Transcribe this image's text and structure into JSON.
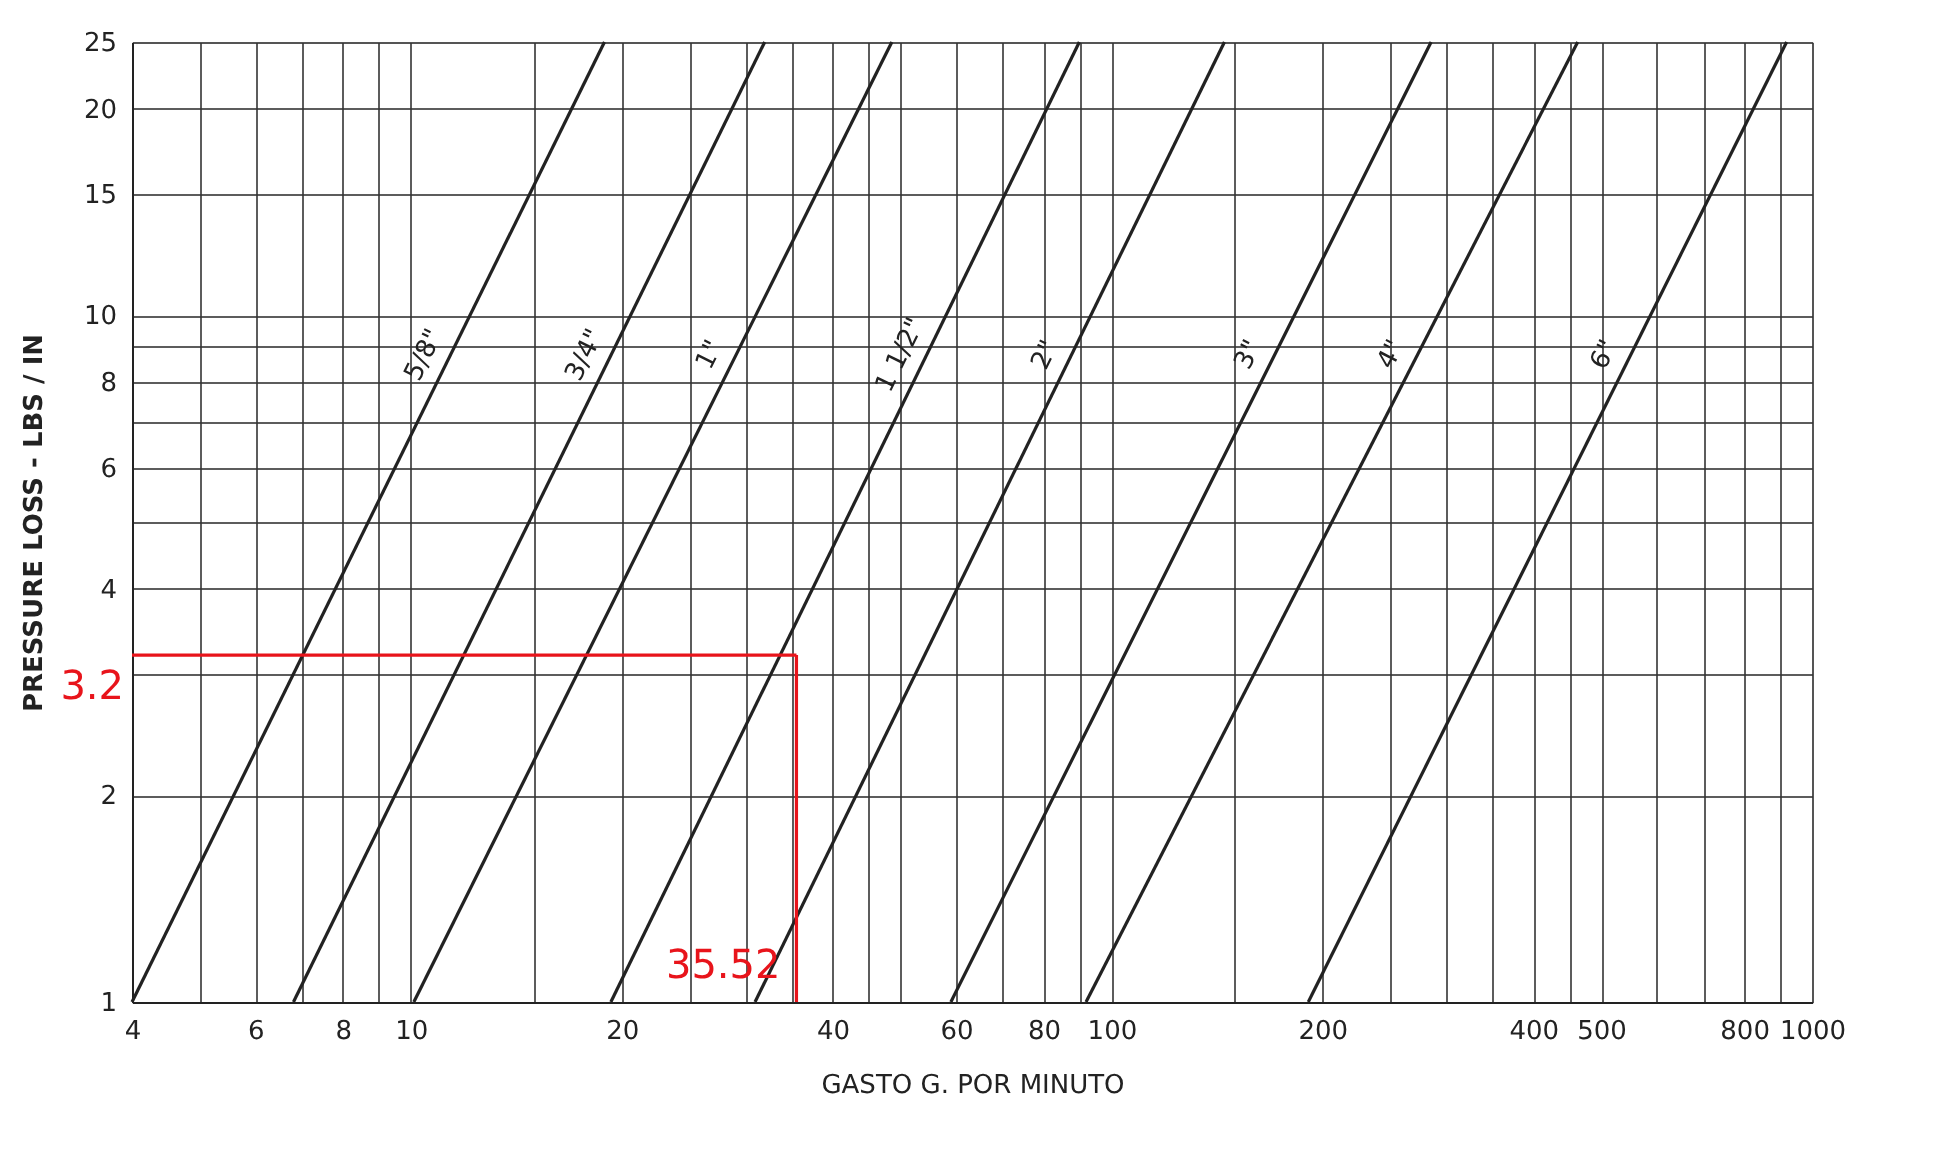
{
  "chart_data": {
    "type": "line",
    "xlabel": "GASTO  G. POR MINUTO",
    "ylabel": "PRESSURE   LOSS - LBS / IN",
    "log": "xy",
    "grid": true,
    "marker": "none",
    "line_style": "solid",
    "xlim": [
      4,
      1000
    ],
    "ylim": [
      1,
      25
    ],
    "xticks": [
      4,
      {
        "value": 5,
        "label": null
      },
      6,
      {
        "value": 7,
        "label": null
      },
      8,
      {
        "value": 9,
        "label": null
      },
      10,
      {
        "value": 15,
        "label": null
      },
      20,
      {
        "value": 25,
        "label": null
      },
      {
        "value": 30,
        "label": null
      },
      {
        "value": 35,
        "label": null
      },
      40,
      {
        "value": 45,
        "label": null
      },
      {
        "value": 50,
        "label": null
      },
      60,
      {
        "value": 70,
        "label": null
      },
      80,
      {
        "value": 90,
        "label": null
      },
      100,
      {
        "value": 150,
        "label": null
      },
      200,
      {
        "value": 250,
        "label": null
      },
      {
        "value": 300,
        "label": null
      },
      {
        "value": 350,
        "label": null
      },
      400,
      {
        "value": 450,
        "label": null
      },
      500,
      {
        "value": 600,
        "label": null
      },
      {
        "value": 700,
        "label": null
      },
      800,
      {
        "value": 900,
        "label": null
      },
      1000
    ],
    "yticks": [
      1,
      2,
      {
        "value": 3,
        "label": null
      },
      4,
      {
        "value": 5,
        "label": null
      },
      6,
      {
        "value": 7,
        "label": null
      },
      8,
      {
        "value": 9,
        "label": null
      },
      10,
      15,
      20,
      25
    ],
    "series": [
      {
        "name": "5/8\"",
        "color": "#222222",
        "x": [
          4,
          18.9
        ],
        "values": [
          1,
          25
        ]
      },
      {
        "name": "3/4\"",
        "color": "#222222",
        "x": [
          6.8,
          32
        ],
        "values": [
          1,
          25
        ]
      },
      {
        "name": "1\"",
        "color": "#222222",
        "x": [
          10.1,
          48.6
        ],
        "values": [
          1,
          25
        ]
      },
      {
        "name": "1 1/2\"",
        "color": "#222222",
        "x": [
          19.3,
          90
        ],
        "values": [
          1,
          25
        ]
      },
      {
        "name": "2\"",
        "color": "#222222",
        "x": [
          31,
          145
        ],
        "values": [
          1,
          25
        ]
      },
      {
        "name": "3\"",
        "color": "#222222",
        "x": [
          59,
          286
        ],
        "values": [
          1,
          25
        ]
      },
      {
        "name": "4\"",
        "color": "#222222",
        "x": [
          92,
          463
        ],
        "values": [
          1,
          25
        ]
      },
      {
        "name": "6\"",
        "color": "#222222",
        "x": [
          191,
          920
        ],
        "values": [
          1,
          25
        ]
      },
      {
        "color": "#e8141b",
        "x": [
          4,
          35.52
        ],
        "values": [
          3.2,
          3.2
        ]
      },
      {
        "color": "#e8141b",
        "x": [
          35.52,
          35.52
        ],
        "values": [
          1,
          3.2
        ]
      }
    ],
    "annotations": [
      {
        "text": "3.2",
        "x": 4,
        "y": 3.2
      },
      {
        "text": "35.52",
        "x": 35.52,
        "y": 1
      }
    ]
  }
}
